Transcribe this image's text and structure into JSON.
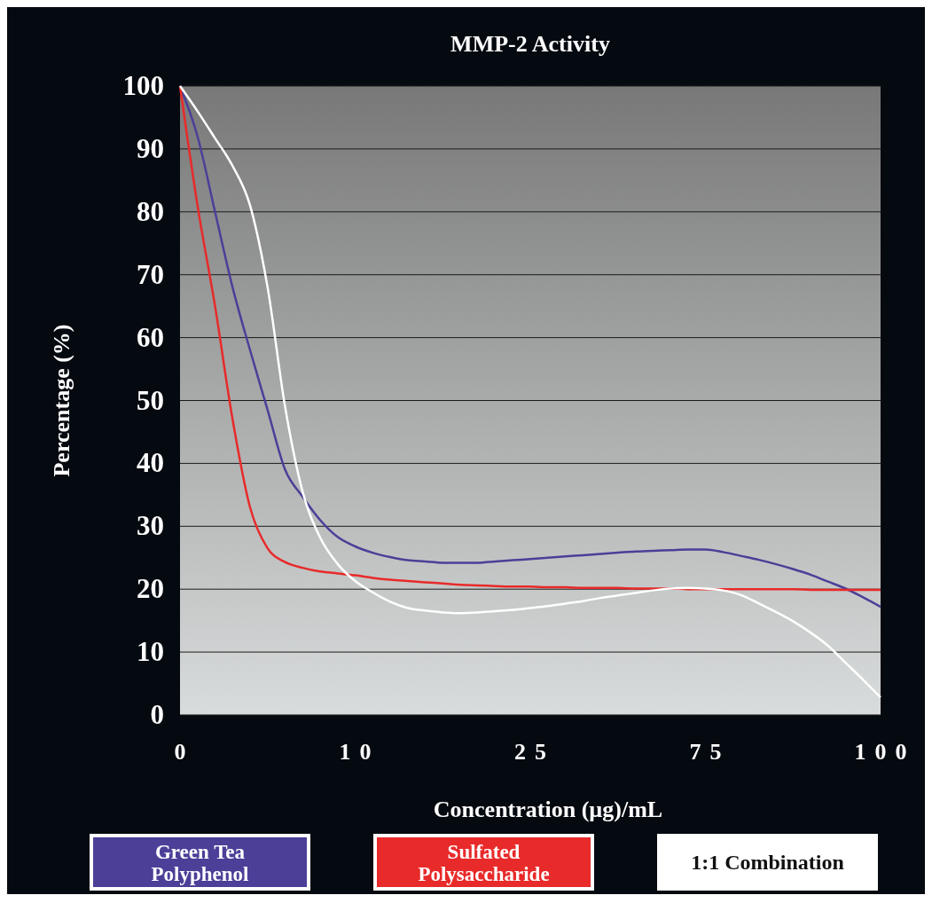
{
  "chart_data": {
    "type": "line",
    "title": "MMP-2 Activity",
    "xlabel": "Concentration (µg)/mL",
    "ylabel": "Percentage (%)",
    "categories": [
      "0",
      null,
      null,
      null,
      null,
      null,
      null,
      null,
      null,
      null,
      "10",
      null,
      null,
      null,
      null,
      null,
      null,
      null,
      null,
      null,
      "25",
      null,
      null,
      null,
      null,
      null,
      null,
      null,
      null,
      null,
      "75",
      null,
      null,
      null,
      null,
      null,
      null,
      null,
      null,
      null,
      "100"
    ],
    "ylim": [
      0,
      100
    ],
    "yticks": [
      0,
      10,
      20,
      30,
      40,
      50,
      60,
      70,
      80,
      90,
      100
    ],
    "grid": "y",
    "legend": "bottom",
    "marker": "none",
    "line_style": "solid",
    "series": [
      {
        "name": "Green Tea Polyphenol",
        "color": "#4b3f98",
        "values": [
          100,
          92,
          80,
          68,
          58,
          48.5,
          39,
          34.7,
          31,
          28.3,
          26.8,
          25.8,
          25.1,
          24.6,
          24.4,
          24.2,
          24.2,
          24.2,
          24.4,
          24.6,
          24.8,
          25,
          25.2,
          25.4,
          25.6,
          25.8,
          26,
          26.1,
          26.2,
          26.3,
          26.3,
          25.9,
          25.3,
          24.7,
          24,
          23.2,
          22.3,
          21.2,
          20.1,
          18.7,
          17.2
        ]
      },
      {
        "name": "Sulfated Polysaccharide",
        "color": "#e82a2a",
        "values": [
          100,
          81,
          65,
          47,
          33,
          26.5,
          24.3,
          23.4,
          22.8,
          22.5,
          22.2,
          21.8,
          21.5,
          21.3,
          21.1,
          20.9,
          20.7,
          20.6,
          20.5,
          20.4,
          20.4,
          20.3,
          20.3,
          20.2,
          20.2,
          20.2,
          20.1,
          20.1,
          20.1,
          20,
          20,
          20,
          20,
          20,
          20,
          20,
          19.9,
          19.9,
          19.9,
          19.9,
          19.9
        ]
      },
      {
        "name": "1:1 Combination",
        "color": "#ffffff",
        "values": [
          100,
          96,
          91.7,
          87.3,
          81,
          68,
          49,
          35.5,
          28.2,
          24,
          21.3,
          19.5,
          18,
          17,
          16.6,
          16.3,
          16.2,
          16.3,
          16.5,
          16.7,
          17,
          17.3,
          17.7,
          18.1,
          18.6,
          19,
          19.4,
          19.8,
          20.1,
          20.2,
          20.1,
          19.8,
          19.1,
          17.8,
          16.4,
          14.9,
          13.1,
          11,
          8.3,
          5.6,
          2.8
        ]
      }
    ]
  }
}
